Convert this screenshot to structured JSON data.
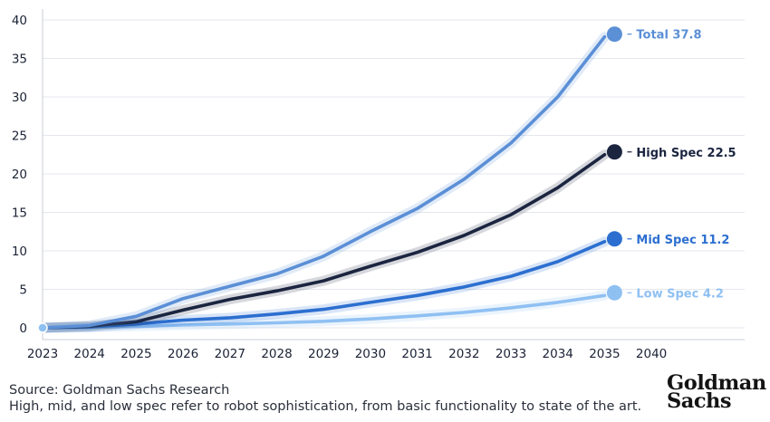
{
  "chart_data": {
    "type": "line",
    "x": [
      "2023",
      "2024",
      "2025",
      "2026",
      "2027",
      "2028",
      "2029",
      "2030",
      "2031",
      "2032",
      "2033",
      "2034",
      "2035"
    ],
    "x_tick_labels": [
      "2023",
      "2024",
      "2025",
      "2026",
      "2027",
      "2028",
      "2029",
      "2030",
      "2031",
      "2032",
      "2033",
      "2034",
      "2035",
      "2040"
    ],
    "ylim": [
      0,
      40
    ],
    "y_ticks": [
      0,
      5,
      10,
      15,
      20,
      25,
      30,
      35,
      40
    ],
    "grid": "horizontal",
    "legend": "end-of-line labels",
    "series": [
      {
        "name": "Total",
        "end_label": "Total 37.8",
        "color": "#5b8fd6",
        "values": [
          0,
          0.3,
          1.5,
          3.8,
          5.4,
          7.0,
          9.3,
          12.5,
          15.5,
          19.3,
          24.0,
          30.0,
          37.8
        ]
      },
      {
        "name": "High Spec",
        "end_label": "High Spec 22.5",
        "color": "#1b2540",
        "values": [
          0,
          0.2,
          0.8,
          2.3,
          3.7,
          4.8,
          6.1,
          8.0,
          9.8,
          12.0,
          14.7,
          18.2,
          22.5
        ]
      },
      {
        "name": "Mid Spec",
        "end_label": "Mid Spec 11.2",
        "color": "#2c6fd0",
        "values": [
          0,
          0.1,
          0.5,
          1.0,
          1.3,
          1.8,
          2.4,
          3.3,
          4.2,
          5.3,
          6.7,
          8.6,
          11.2
        ]
      },
      {
        "name": "Low Spec",
        "end_label": "Low Spec 4.2",
        "color": "#8fc0f2",
        "values": [
          0,
          0.05,
          0.2,
          0.35,
          0.5,
          0.65,
          0.85,
          1.15,
          1.55,
          2.0,
          2.6,
          3.3,
          4.2
        ]
      }
    ]
  },
  "footer": {
    "source": "Source: Goldman Sachs Research",
    "note": "High, mid, and low spec refer to robot sophistication, from basic functionality to state of the art."
  },
  "logo": {
    "line1": "Goldman",
    "line2": "Sachs"
  }
}
